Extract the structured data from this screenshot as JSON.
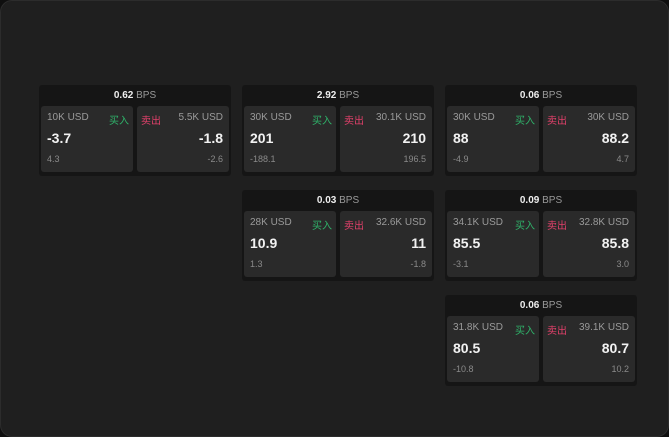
{
  "labels": {
    "unit": "BPS",
    "buy": "买入",
    "sell": "卖出"
  },
  "colors": {
    "buy": "#2fb36a",
    "sell": "#e0406a"
  },
  "cards": [
    {
      "spread": "0.62",
      "buy": {
        "qty": "10K USD",
        "price": "-3.7",
        "change": "4.3"
      },
      "sell": {
        "qty": "5.5K USD",
        "price": "-1.8",
        "change": "-2.6"
      }
    },
    {
      "spread": "2.92",
      "buy": {
        "qty": "30K USD",
        "price": "201",
        "change": "-188.1"
      },
      "sell": {
        "qty": "30.1K USD",
        "price": "210",
        "change": "196.5"
      }
    },
    {
      "spread": "0.06",
      "buy": {
        "qty": "30K USD",
        "price": "88",
        "change": "-4.9"
      },
      "sell": {
        "qty": "30K USD",
        "price": "88.2",
        "change": "4.7"
      }
    },
    {
      "spread": "0.03",
      "buy": {
        "qty": "28K USD",
        "price": "10.9",
        "change": "1.3"
      },
      "sell": {
        "qty": "32.6K USD",
        "price": "11",
        "change": "-1.8"
      }
    },
    {
      "spread": "0.09",
      "buy": {
        "qty": "34.1K USD",
        "price": "85.5",
        "change": "-3.1"
      },
      "sell": {
        "qty": "32.8K USD",
        "price": "85.8",
        "change": "3.0"
      }
    },
    {
      "spread": "0.06",
      "buy": {
        "qty": "31.8K USD",
        "price": "80.5",
        "change": "-10.8"
      },
      "sell": {
        "qty": "39.1K USD",
        "price": "80.7",
        "change": "10.2"
      }
    }
  ]
}
